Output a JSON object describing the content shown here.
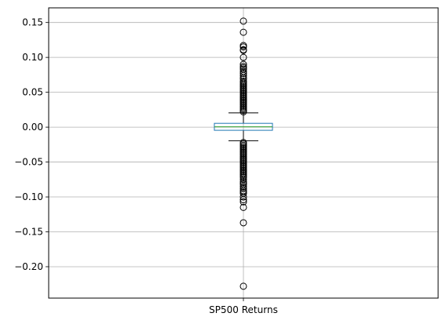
{
  "chart_data": {
    "type": "box",
    "categories": [
      "SP500 Returns"
    ],
    "ylim": [
      -0.245,
      0.171
    ],
    "yticks": [
      -0.2,
      -0.15,
      -0.1,
      -0.05,
      0.0,
      0.05,
      0.1,
      0.15
    ],
    "ytick_labels": [
      "−0.20",
      "−0.15",
      "−0.10",
      "−0.05",
      "0.00",
      "0.05",
      "0.10",
      "0.15"
    ],
    "grid": true,
    "box": {
      "q1": -0.0045,
      "median": 0.0005,
      "q3": 0.0055,
      "whisker_low": -0.0195,
      "whisker_high": 0.0205
    },
    "outliers_high": [
      0.152,
      0.136,
      0.117,
      0.115,
      0.111,
      0.11,
      0.1,
      0.09,
      0.087,
      0.085,
      0.083,
      0.08,
      0.077,
      0.074,
      0.071,
      0.069,
      0.066,
      0.064,
      0.062,
      0.06,
      0.058,
      0.056,
      0.054,
      0.052,
      0.05,
      0.048,
      0.046,
      0.044,
      0.042,
      0.04,
      0.038,
      0.036,
      0.034,
      0.032,
      0.03,
      0.028,
      0.026,
      0.024,
      0.022
    ],
    "outliers_low": [
      -0.022,
      -0.024,
      -0.026,
      -0.028,
      -0.03,
      -0.032,
      -0.034,
      -0.036,
      -0.038,
      -0.04,
      -0.042,
      -0.044,
      -0.046,
      -0.048,
      -0.05,
      -0.052,
      -0.054,
      -0.056,
      -0.058,
      -0.06,
      -0.062,
      -0.064,
      -0.066,
      -0.068,
      -0.07,
      -0.072,
      -0.075,
      -0.078,
      -0.08,
      -0.082,
      -0.085,
      -0.088,
      -0.091,
      -0.093,
      -0.095,
      -0.1,
      -0.104,
      -0.107,
      -0.115,
      -0.137,
      -0.228
    ],
    "colors": {
      "box": "#1f77b4",
      "median": "#2ca02c",
      "whisker": "#000000",
      "outlier": "#000000",
      "grid": "#b0b0b0"
    }
  }
}
